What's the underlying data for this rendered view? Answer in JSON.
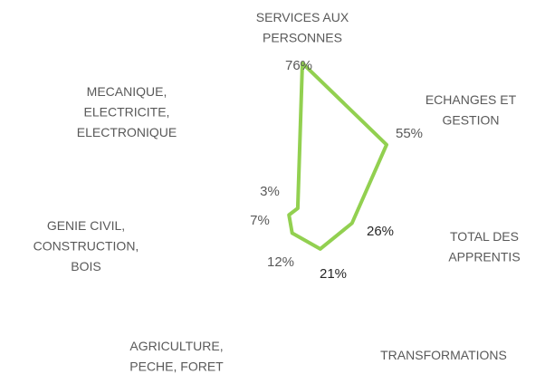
{
  "chart_data": {
    "type": "radar",
    "categories": [
      "SERVICES AUX\nPERSONNES",
      "ECHANGES ET\nGESTION",
      "TOTAL DES\nAPPRENTIS",
      "TRANSFORMATIONS",
      "AGRICULTURE,\nPECHE, FORET",
      "GENIE CIVIL,\nCONSTRUCTION,\nBOIS",
      "MECANIQUE,\nELECTRICITE,\nELECTRONIQUE"
    ],
    "values": [
      76,
      55,
      26,
      21,
      12,
      7,
      3
    ],
    "value_labels": [
      "76%",
      "55%",
      "26%",
      "21%",
      "12%",
      "7%",
      "3%"
    ],
    "color": "#92d050",
    "ylim": [
      0,
      80
    ]
  }
}
